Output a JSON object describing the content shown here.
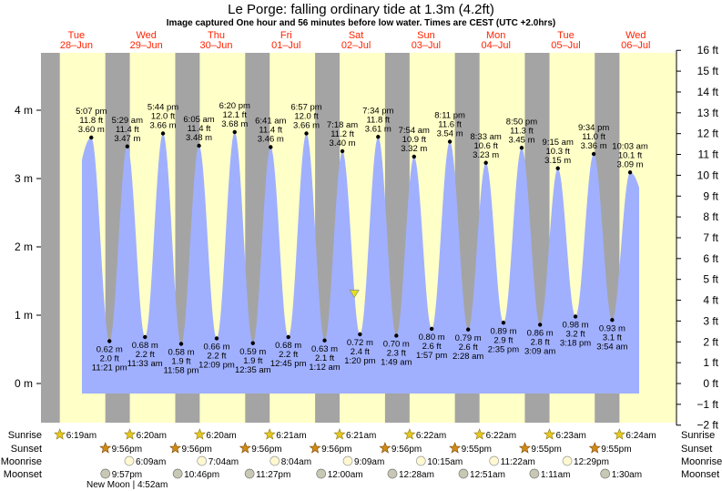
{
  "title": "Le Porge: falling  ordinary tide at 1.3m (4.2ft)",
  "subtitle": "Image captured One hour and 56 minutes before low water. Times are CEST (UTC +2.0hrs)",
  "chart_data": {
    "type": "area",
    "title": "Le Porge: falling  ordinary tide at 1.3m (4.2ft)",
    "ylim_m": [
      -0.55,
      4.9
    ],
    "left_ticks_m": [
      0,
      1,
      2,
      3,
      4
    ],
    "left_tick_labels": [
      "0 m",
      "1 m",
      "2 m",
      "3 m",
      "4 m"
    ],
    "right_ticks_ft": [
      -2,
      -1,
      0,
      1,
      2,
      3,
      4,
      5,
      6,
      7,
      8,
      9,
      10,
      11,
      12,
      13,
      14,
      15,
      16
    ],
    "right_tick_labels": [
      "−2 ft",
      "−1 ft",
      "0 ft",
      "1 ft",
      "2 ft",
      "3 ft",
      "4 ft",
      "5 ft",
      "6 ft",
      "7 ft",
      "8 ft",
      "9 ft",
      "10 ft",
      "11 ft",
      "12 ft",
      "13 ft",
      "14 ft",
      "15 ft",
      "16 ft"
    ],
    "days": [
      {
        "dow": "Tue",
        "date": "28–Jun"
      },
      {
        "dow": "Wed",
        "date": "29–Jun"
      },
      {
        "dow": "Thu",
        "date": "30–Jun"
      },
      {
        "dow": "Fri",
        "date": "01–Jul"
      },
      {
        "dow": "Sat",
        "date": "02–Jul"
      },
      {
        "dow": "Sun",
        "date": "03–Jul"
      },
      {
        "dow": "Mon",
        "date": "04–Jul"
      },
      {
        "dow": "Tue",
        "date": "05–Jul"
      },
      {
        "dow": "Wed",
        "date": "06–Jul"
      }
    ],
    "tides": [
      {
        "kind": "high",
        "day": 0,
        "time": "5:07 pm",
        "ft": "11.8 ft",
        "m": 3.6
      },
      {
        "kind": "low",
        "day": 0,
        "time": "11:21 pm",
        "ft": "2.0 ft",
        "m": 0.62
      },
      {
        "kind": "high",
        "day": 1,
        "time": "5:29 am",
        "ft": "11.4 ft",
        "m": 3.47
      },
      {
        "kind": "low",
        "day": 1,
        "time": "11:33 am",
        "ft": "2.2 ft",
        "m": 0.68
      },
      {
        "kind": "high",
        "day": 1,
        "time": "5:44 pm",
        "ft": "12.0 ft",
        "m": 3.66
      },
      {
        "kind": "low",
        "day": 1,
        "time": "11:58 pm",
        "ft": "1.9 ft",
        "m": 0.58
      },
      {
        "kind": "high",
        "day": 2,
        "time": "6:05 am",
        "ft": "11.4 ft",
        "m": 3.48
      },
      {
        "kind": "low",
        "day": 2,
        "time": "12:09 pm",
        "ft": "2.2 ft",
        "m": 0.66
      },
      {
        "kind": "high",
        "day": 2,
        "time": "6:20 pm",
        "ft": "12.1 ft",
        "m": 3.68
      },
      {
        "kind": "low",
        "day": 3,
        "time": "12:35 am",
        "ft": "1.9 ft",
        "m": 0.59
      },
      {
        "kind": "high",
        "day": 3,
        "time": "6:41 am",
        "ft": "11.4 ft",
        "m": 3.46
      },
      {
        "kind": "low",
        "day": 3,
        "time": "12:45 pm",
        "ft": "2.2 ft",
        "m": 0.68
      },
      {
        "kind": "high",
        "day": 3,
        "time": "6:57 pm",
        "ft": "12.0 ft",
        "m": 3.66
      },
      {
        "kind": "low",
        "day": 4,
        "time": "1:12 am",
        "ft": "2.1 ft",
        "m": 0.63
      },
      {
        "kind": "high",
        "day": 4,
        "time": "7:18 am",
        "ft": "11.2 ft",
        "m": 3.4
      },
      {
        "kind": "low",
        "day": 4,
        "time": "1:20 pm",
        "ft": "2.4 ft",
        "m": 0.72
      },
      {
        "kind": "high",
        "day": 4,
        "time": "7:34 pm",
        "ft": "11.8 ft",
        "m": 3.61
      },
      {
        "kind": "low",
        "day": 5,
        "time": "1:49 am",
        "ft": "2.3 ft",
        "m": 0.7
      },
      {
        "kind": "high",
        "day": 5,
        "time": "7:54 am",
        "ft": "10.9 ft",
        "m": 3.32
      },
      {
        "kind": "low",
        "day": 5,
        "time": "1:57 pm",
        "ft": "2.6 ft",
        "m": 0.8
      },
      {
        "kind": "high",
        "day": 5,
        "time": "8:11 pm",
        "ft": "11.6 ft",
        "m": 3.54
      },
      {
        "kind": "low",
        "day": 6,
        "time": "2:28 am",
        "ft": "2.6 ft",
        "m": 0.79
      },
      {
        "kind": "high",
        "day": 6,
        "time": "8:33 am",
        "ft": "10.6 ft",
        "m": 3.23
      },
      {
        "kind": "low",
        "day": 6,
        "time": "2:35 pm",
        "ft": "2.9 ft",
        "m": 0.89
      },
      {
        "kind": "high",
        "day": 6,
        "time": "8:50 pm",
        "ft": "11.3 ft",
        "m": 3.45
      },
      {
        "kind": "low",
        "day": 7,
        "time": "3:09 am",
        "ft": "2.8 ft",
        "m": 0.86
      },
      {
        "kind": "high",
        "day": 7,
        "time": "9:15 am",
        "ft": "10.3 ft",
        "m": 3.15
      },
      {
        "kind": "low",
        "day": 7,
        "time": "3:18 pm",
        "ft": "3.2 ft",
        "m": 0.98
      },
      {
        "kind": "high",
        "day": 7,
        "time": "9:34 pm",
        "ft": "11.0 ft",
        "m": 3.36
      },
      {
        "kind": "low",
        "day": 8,
        "time": "3:54 am",
        "ft": "3.1 ft",
        "m": 0.93
      },
      {
        "kind": "high",
        "day": 8,
        "time": "10:03 am",
        "ft": "10.1 ft",
        "m": 3.09
      }
    ],
    "current": {
      "day": 4,
      "time": "11:24 am",
      "m": 1.3
    },
    "sunrise": [
      "6:19am",
      "6:20am",
      "6:20am",
      "6:21am",
      "6:21am",
      "6:22am",
      "6:22am",
      "6:23am",
      "6:24am"
    ],
    "sunset": [
      "9:56pm",
      "9:56pm",
      "9:56pm",
      "9:56pm",
      "9:56pm",
      "9:55pm",
      "9:55pm",
      "9:55pm"
    ],
    "moonrise": [
      "6:09am",
      "7:04am",
      "8:04am",
      "9:09am",
      "10:15am",
      "11:22am",
      "12:29pm"
    ],
    "moonset": [
      "9:57pm",
      "10:46pm",
      "11:27pm",
      "12:00am",
      "12:28am",
      "12:51am",
      "1:11am",
      "1:30am"
    ],
    "moon_phase_note": "New Moon | 4:52am",
    "row_labels": {
      "sunrise": "Sunrise",
      "sunset": "Sunset",
      "moonrise": "Moonrise",
      "moonset": "Moonset"
    }
  },
  "colors": {
    "night": "#a4a4a4",
    "day": "#ffffc8",
    "water": "#a0b0ff",
    "day_label": "#ff2200",
    "marker": "#e0e020"
  }
}
